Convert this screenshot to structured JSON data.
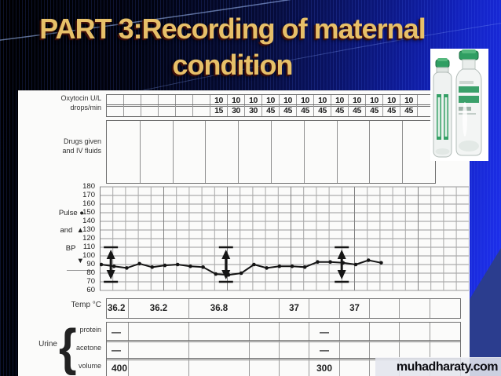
{
  "slide": {
    "title_line1": "PART 3:Recording of maternal",
    "title_line2": "condition",
    "watermark": "muhadharaty.com"
  },
  "colors": {
    "title_gold": "#e7c069",
    "bright_blue": "#1e30ee",
    "background_navy": "#060c38",
    "panel_bg": "#fbfbfa",
    "chart_ink": "#151515",
    "grid_gray": "#9a9a9a",
    "vial_green": "#2f9e62"
  },
  "panel_labels": {
    "oxytocin": "Oxytocin U/L",
    "drops": "drops/min",
    "drugs1": "Drugs given",
    "drugs2": "and IV fluids",
    "pulse": "Pulse",
    "pulse_marker": "●",
    "and": "and",
    "up_marker": "▲",
    "bp": "BP",
    "down_marker": "▼",
    "temp": "Temp °C",
    "urine": "Urine",
    "brace": "{",
    "protein": "protein",
    "acetone": "acetone",
    "volume": "volume"
  },
  "chart_data": {
    "type": "line",
    "title": "Partograph — recording of maternal condition",
    "oxytocin_row": {
      "label": "Oxytocin U/L",
      "cells": [
        "",
        "",
        "",
        "",
        "",
        "",
        "10",
        "10",
        "10",
        "10",
        "10",
        "10",
        "10",
        "10",
        "10",
        "10",
        "10",
        "10",
        ""
      ]
    },
    "drops_row": {
      "label": "drops/min",
      "cells": [
        "",
        "",
        "",
        "",
        "",
        "",
        "15",
        "30",
        "30",
        "45",
        "45",
        "45",
        "45",
        "45",
        "45",
        "45",
        "45",
        "45",
        ""
      ]
    },
    "pulse_bp": {
      "ylabel_ticks": [
        180,
        170,
        160,
        150,
        140,
        130,
        120,
        110,
        100,
        90,
        80,
        70,
        60
      ],
      "ymin": 60,
      "ymax": 180,
      "grid": "on",
      "pulse_points": [
        90,
        88,
        86,
        91,
        87,
        89,
        90,
        88,
        87,
        79,
        78,
        80,
        90,
        86,
        88,
        88,
        87,
        93,
        93,
        92,
        90,
        95,
        92
      ],
      "bp_arrows": [
        {
          "index": 0.75,
          "systolic": 110,
          "diastolic": 70
        },
        {
          "index": 9.8,
          "systolic": 110,
          "diastolic": 70
        },
        {
          "index": 18.9,
          "systolic": 110,
          "diastolic": 70
        }
      ]
    },
    "temp_row": {
      "label": "Temp °C",
      "cells": [
        "36.2",
        "36.2",
        "36.8",
        "",
        "37",
        "",
        "37",
        "",
        "",
        ""
      ]
    },
    "urine": {
      "protein": [
        "—",
        "",
        "",
        "",
        "",
        "—",
        "",
        "",
        "",
        ""
      ],
      "acetone": [
        "—",
        "",
        "",
        "",
        "",
        "—",
        "",
        "",
        "",
        ""
      ],
      "volume": [
        "400",
        "",
        "",
        "",
        "",
        "300",
        "",
        "",
        "",
        ""
      ]
    }
  }
}
